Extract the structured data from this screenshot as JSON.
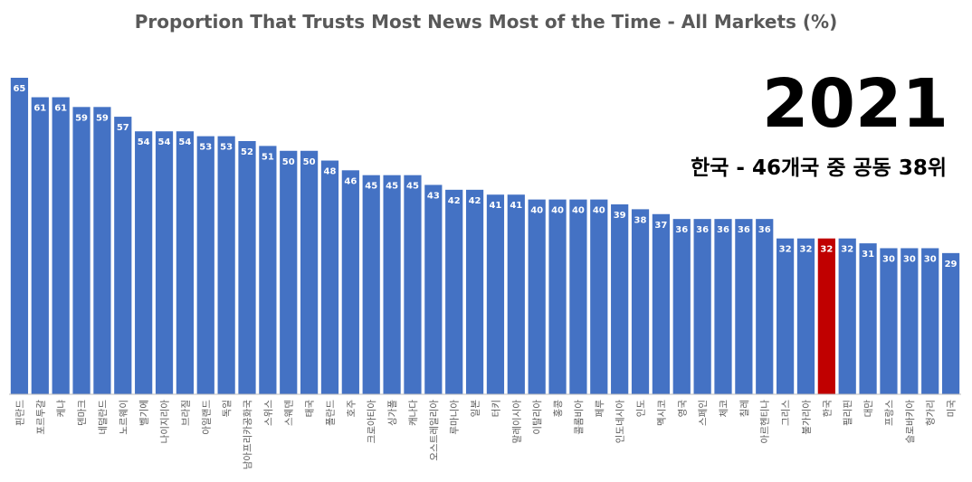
{
  "chart_data": {
    "type": "bar",
    "title": "Proportion That Trusts Most News Most of the Time - All Markets (%)",
    "year": "2021",
    "rank_note": "한국 - 46개국 중 공동 38위",
    "xlabel": "",
    "ylabel": "",
    "ylim": [
      0,
      72
    ],
    "grid": false,
    "legend": "none",
    "highlight_category": "한국",
    "colors": {
      "bar": "#4472C4",
      "highlight": "#C00000",
      "title": "#595959",
      "axis": "#bfbfbf"
    },
    "categories": [
      "핀란드",
      "포르투갈",
      "케냐",
      "덴마크",
      "네덜란드",
      "노르웨이",
      "벨기에",
      "나이지리아",
      "브라질",
      "아일랜드",
      "독일",
      "남아프리카공화국",
      "스위스",
      "스웨덴",
      "태국",
      "폴란드",
      "호주",
      "크로아티아",
      "싱가폴",
      "캐나다",
      "오스트레일리아",
      "루마니아",
      "일본",
      "터키",
      "말레이시아",
      "이탈리아",
      "홍콩",
      "콜롬비아",
      "페루",
      "인도네시아",
      "인도",
      "멕시코",
      "영국",
      "스페인",
      "체코",
      "칠레",
      "아르헨티나",
      "그리스",
      "불가리아",
      "한국",
      "필리핀",
      "대만",
      "프랑스",
      "슬로바키아",
      "헝가리",
      "미국"
    ],
    "values": [
      65,
      61,
      61,
      59,
      59,
      57,
      54,
      54,
      54,
      53,
      53,
      52,
      51,
      50,
      50,
      48,
      46,
      45,
      45,
      45,
      43,
      42,
      42,
      41,
      41,
      40,
      40,
      40,
      40,
      39,
      38,
      37,
      36,
      36,
      36,
      36,
      36,
      32,
      32,
      32,
      32,
      31,
      30,
      30,
      30,
      29
    ]
  }
}
